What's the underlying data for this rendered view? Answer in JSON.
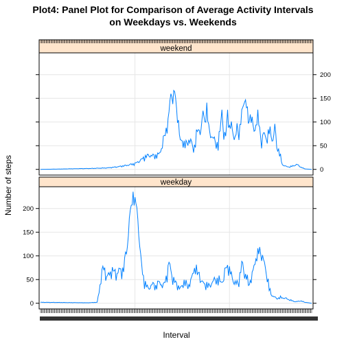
{
  "chart_data": {
    "type": "line",
    "title_line1": "Plot4: Panel Plot for Comparison of Average Activity Intervals",
    "title_line2": "on Weekdays vs. Weekends",
    "xlabel": "Interval",
    "ylabel": "Number of steps",
    "y_ticks": [
      "0",
      "50",
      "100",
      "150",
      "200"
    ],
    "ylim": [
      -12,
      246
    ],
    "x_points": 288,
    "x_tick_labels_note": "dense overlapping interval labels",
    "grid": true,
    "line_color": "#0080ff",
    "strip_color": "#ffe5cc",
    "panels": [
      {
        "name": "weekend",
        "keypoints": [
          [
            0,
            0
          ],
          [
            55,
            2
          ],
          [
            70,
            3
          ],
          [
            80,
            5
          ],
          [
            90,
            8
          ],
          [
            100,
            12
          ],
          [
            105,
            18
          ],
          [
            110,
            25
          ],
          [
            115,
            30
          ],
          [
            120,
            28
          ],
          [
            125,
            30
          ],
          [
            128,
            45
          ],
          [
            132,
            75
          ],
          [
            135,
            100
          ],
          [
            138,
            160
          ],
          [
            140,
            150
          ],
          [
            142,
            165
          ],
          [
            144,
            125
          ],
          [
            146,
            100
          ],
          [
            148,
            55
          ],
          [
            150,
            60
          ],
          [
            154,
            50
          ],
          [
            158,
            65
          ],
          [
            162,
            40
          ],
          [
            166,
            80
          ],
          [
            170,
            85
          ],
          [
            172,
            120
          ],
          [
            174,
            100
          ],
          [
            176,
            130
          ],
          [
            178,
            85
          ],
          [
            180,
            75
          ],
          [
            184,
            60
          ],
          [
            188,
            50
          ],
          [
            190,
            80
          ],
          [
            192,
            130
          ],
          [
            194,
            65
          ],
          [
            196,
            70
          ],
          [
            198,
            125
          ],
          [
            200,
            80
          ],
          [
            202,
            95
          ],
          [
            206,
            60
          ],
          [
            208,
            90
          ],
          [
            210,
            75
          ],
          [
            212,
            100
          ],
          [
            214,
            130
          ],
          [
            216,
            150
          ],
          [
            218,
            135
          ],
          [
            220,
            100
          ],
          [
            222,
            115
          ],
          [
            224,
            100
          ],
          [
            226,
            80
          ],
          [
            228,
            95
          ],
          [
            230,
            110
          ],
          [
            232,
            85
          ],
          [
            234,
            55
          ],
          [
            236,
            75
          ],
          [
            240,
            65
          ],
          [
            242,
            80
          ],
          [
            244,
            75
          ],
          [
            246,
            60
          ],
          [
            248,
            90
          ],
          [
            250,
            50
          ],
          [
            252,
            40
          ],
          [
            254,
            25
          ],
          [
            256,
            10
          ],
          [
            260,
            6
          ],
          [
            264,
            5
          ],
          [
            268,
            8
          ],
          [
            272,
            10
          ],
          [
            276,
            4
          ],
          [
            280,
            1
          ],
          [
            287,
            0
          ]
        ]
      },
      {
        "name": "weekday",
        "keypoints": [
          [
            0,
            2
          ],
          [
            50,
            1
          ],
          [
            60,
            2
          ],
          [
            62,
            25
          ],
          [
            65,
            65
          ],
          [
            67,
            75
          ],
          [
            70,
            55
          ],
          [
            73,
            60
          ],
          [
            76,
            70
          ],
          [
            80,
            60
          ],
          [
            83,
            70
          ],
          [
            86,
            65
          ],
          [
            88,
            75
          ],
          [
            90,
            100
          ],
          [
            92,
            120
          ],
          [
            94,
            180
          ],
          [
            96,
            200
          ],
          [
            98,
            230
          ],
          [
            100,
            215
          ],
          [
            102,
            200
          ],
          [
            104,
            150
          ],
          [
            106,
            100
          ],
          [
            108,
            60
          ],
          [
            110,
            45
          ],
          [
            114,
            30
          ],
          [
            118,
            40
          ],
          [
            122,
            35
          ],
          [
            126,
            45
          ],
          [
            130,
            35
          ],
          [
            134,
            60
          ],
          [
            136,
            85
          ],
          [
            138,
            70
          ],
          [
            140,
            50
          ],
          [
            144,
            40
          ],
          [
            148,
            30
          ],
          [
            152,
            45
          ],
          [
            156,
            35
          ],
          [
            160,
            50
          ],
          [
            162,
            70
          ],
          [
            164,
            75
          ],
          [
            166,
            60
          ],
          [
            168,
            65
          ],
          [
            170,
            45
          ],
          [
            174,
            40
          ],
          [
            178,
            35
          ],
          [
            182,
            45
          ],
          [
            186,
            50
          ],
          [
            190,
            45
          ],
          [
            194,
            50
          ],
          [
            196,
            75
          ],
          [
            198,
            80
          ],
          [
            200,
            65
          ],
          [
            202,
            60
          ],
          [
            206,
            40
          ],
          [
            210,
            45
          ],
          [
            212,
            70
          ],
          [
            214,
            85
          ],
          [
            216,
            60
          ],
          [
            218,
            55
          ],
          [
            220,
            40
          ],
          [
            224,
            55
          ],
          [
            226,
            80
          ],
          [
            228,
            95
          ],
          [
            230,
            100
          ],
          [
            232,
            115
          ],
          [
            234,
            100
          ],
          [
            236,
            90
          ],
          [
            238,
            75
          ],
          [
            240,
            55
          ],
          [
            242,
            30
          ],
          [
            244,
            20
          ],
          [
            246,
            15
          ],
          [
            250,
            10
          ],
          [
            255,
            12
          ],
          [
            260,
            10
          ],
          [
            265,
            6
          ],
          [
            270,
            3
          ],
          [
            275,
            5
          ],
          [
            280,
            2
          ],
          [
            287,
            0
          ]
        ]
      }
    ]
  }
}
